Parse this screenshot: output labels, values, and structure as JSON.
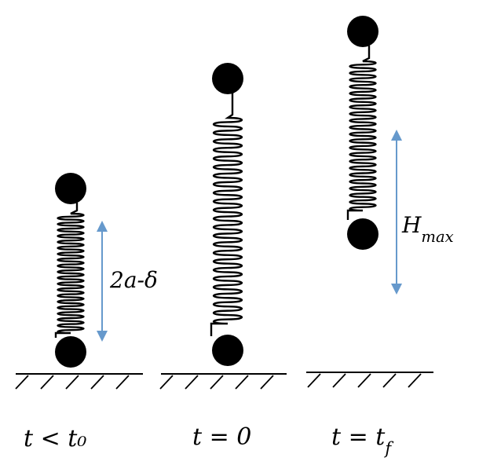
{
  "captions": {
    "state1": "t < t₀",
    "state2": "t = 0",
    "state3": "t = t_f"
  },
  "labels": {
    "compression": "2a-δ",
    "height": "H_max"
  },
  "colors": {
    "arrow": "#6699cc",
    "ink": "#000000"
  }
}
